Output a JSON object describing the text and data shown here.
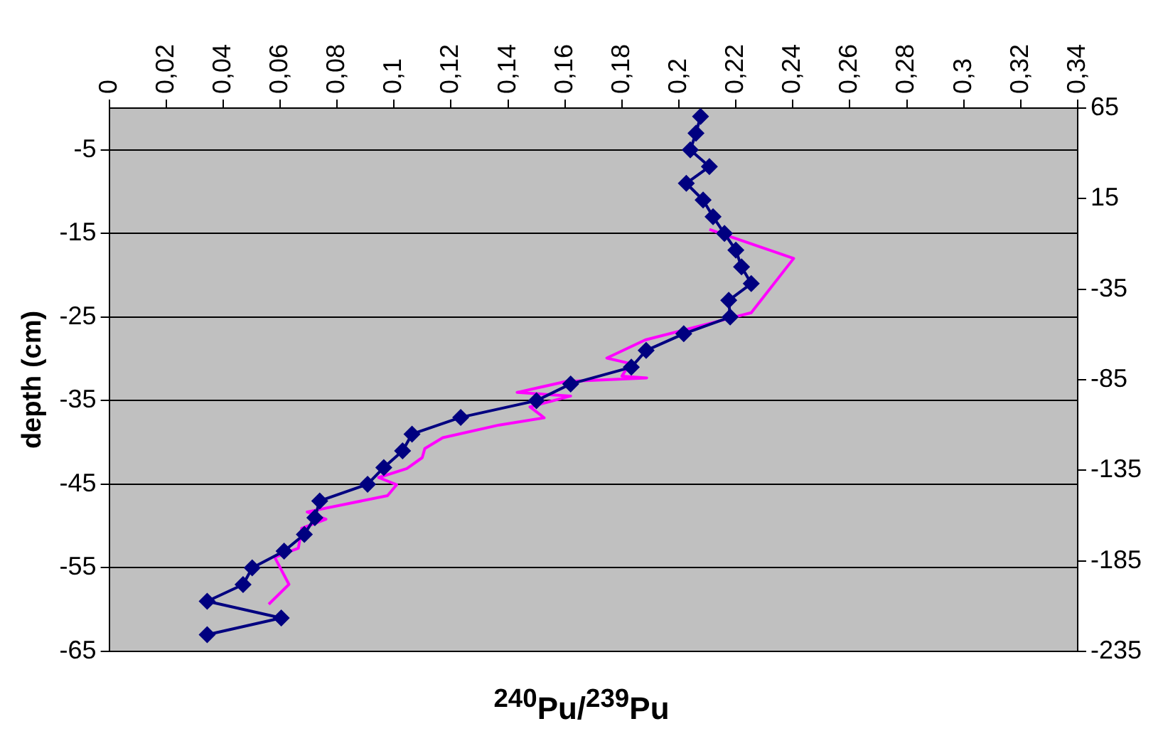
{
  "chart_data": {
    "type": "line",
    "xlabel": "$^{240}$Pu/$^{239}$Pu",
    "ylabel": "depth (cm)",
    "xlim": [
      0,
      0.34
    ],
    "xticks": [
      0,
      {
        "value": 0.02,
        "label": "0,02"
      },
      {
        "value": 0.04,
        "label": "0,04"
      },
      {
        "value": 0.06,
        "label": "0,06"
      },
      {
        "value": 0.08,
        "label": "0,08"
      },
      {
        "value": 0.1,
        "label": "0,1"
      },
      {
        "value": 0.12,
        "label": "0,12"
      },
      {
        "value": 0.14,
        "label": "0,14"
      },
      {
        "value": 0.16,
        "label": "0,16"
      },
      {
        "value": 0.18,
        "label": "0,18"
      },
      {
        "value": 0.2,
        "label": "0,2"
      },
      {
        "value": 0.22,
        "label": "0,22"
      },
      {
        "value": 0.24,
        "label": "0,24"
      },
      {
        "value": 0.26,
        "label": "0,26"
      },
      {
        "value": 0.28,
        "label": "0,28"
      },
      {
        "value": 0.3,
        "label": "0,3"
      },
      {
        "value": 0.32,
        "label": "0,32"
      },
      {
        "value": 0.34,
        "label": "0,34"
      }
    ],
    "ylim": [
      -65,
      0
    ],
    "yticks": [
      -5,
      -15,
      -25,
      -35,
      -45,
      -55,
      -65
    ],
    "y2lim": [
      -235,
      65
    ],
    "y2ticks": [
      65,
      15,
      -35,
      -85,
      -135,
      -185,
      -235
    ],
    "grid": "y",
    "legend": false,
    "line_style": "solid",
    "series": [
      {
        "color": "#000080",
        "marker": "diamond",
        "x": [
          0.2076,
          0.206,
          0.204,
          0.2107,
          0.2026,
          0.2085,
          0.212,
          0.216,
          0.22,
          0.222,
          0.2254,
          0.2175,
          0.218,
          0.2017,
          0.1885,
          0.1833,
          0.162,
          0.15,
          0.1234,
          0.1063,
          0.103,
          0.0964,
          0.0907,
          0.0739,
          0.0722,
          0.0685,
          0.0614,
          0.0502,
          0.047,
          0.0344,
          0.0604,
          0.0344
        ],
        "values": [
          -1,
          -3,
          -5,
          -7,
          -9,
          -11,
          -13,
          -15,
          -17,
          -19,
          -21,
          -23,
          -25,
          -27,
          -29,
          -31,
          -33,
          -35,
          -37,
          -39,
          -41,
          -43,
          -45,
          -47,
          -49,
          -51,
          -53,
          -55,
          -57,
          -59,
          -61,
          -63
        ]
      },
      {
        "color": "#ff00ff",
        "marker": "none",
        "axis": "y2",
        "x": [
          0.2107,
          0.2403,
          0.2254,
          0.1882,
          0.1747,
          0.1828,
          0.18,
          0.1887,
          0.1603,
          0.1432,
          0.162,
          0.1477,
          0.1527,
          0.1369,
          0.1171,
          0.1108,
          0.1099,
          0.1045,
          0.0946,
          0.1009,
          0.0977,
          0.0695,
          0.0761,
          0.0676,
          0.0664,
          0.0581,
          0.0631,
          0.056
        ],
        "values": [
          -2,
          -18,
          -48,
          -63,
          -73,
          -76,
          -83,
          -84,
          -86,
          -92,
          -94,
          -100,
          -106,
          -110,
          -117,
          -123,
          -128,
          -134,
          -139,
          -143,
          -149,
          -158,
          -162,
          -167,
          -178,
          -183,
          -198,
          -209
        ]
      }
    ]
  }
}
